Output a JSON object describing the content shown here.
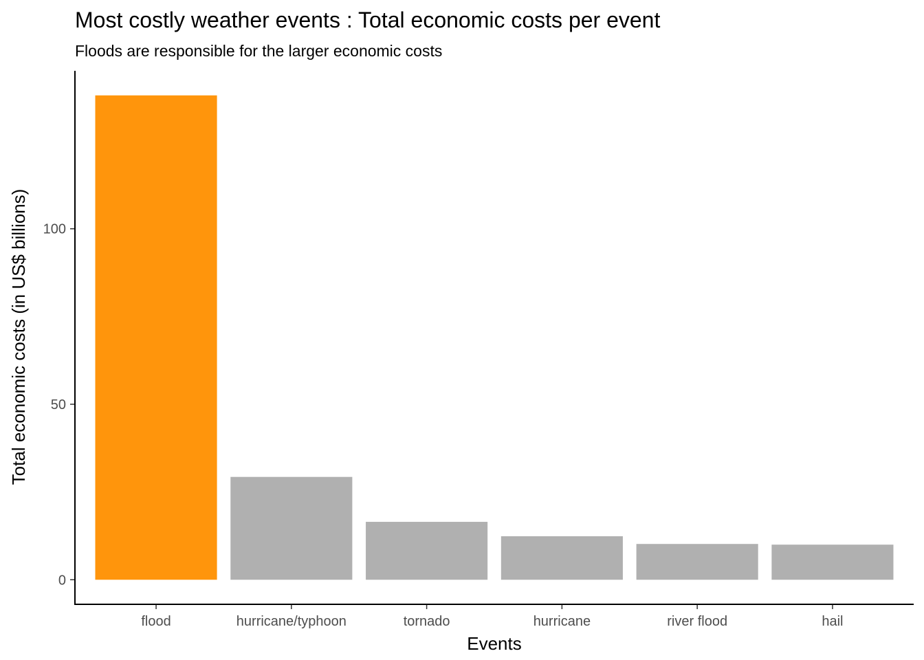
{
  "chart_data": {
    "type": "bar",
    "title": "Most costly weather events : Total economic costs per event",
    "subtitle": "Floods are responsible for the larger economic costs",
    "xlabel": "Events",
    "ylabel": "Total economic costs (in US$ billions)",
    "categories": [
      "flood",
      "hurricane/typhoon",
      "tornado",
      "hurricane",
      "river flood",
      "hail"
    ],
    "values": [
      138.0,
      29.3,
      16.5,
      12.4,
      10.2,
      10.0
    ],
    "ylim": [
      -7,
      145
    ],
    "yticks": [
      {
        "value": 0,
        "label": "0"
      },
      {
        "value": 50,
        "label": "50"
      },
      {
        "value": 100,
        "label": "100"
      }
    ],
    "colors": {
      "highlight": "#FF950C",
      "default": "#B0B0B0",
      "axis": "#000000",
      "tick_text": "#4d4d4d"
    },
    "highlight_category": "flood",
    "grid": false,
    "legend": "none"
  }
}
